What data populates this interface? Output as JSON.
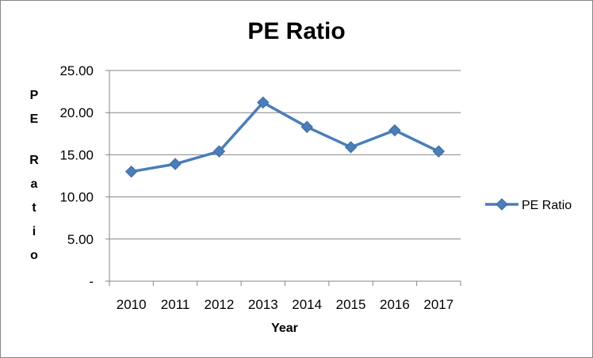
{
  "chart_data": {
    "type": "line",
    "title": "PE Ratio",
    "xlabel": "Year",
    "ylabel": "PE Ratio",
    "categories": [
      "2010",
      "2011",
      "2012",
      "2013",
      "2014",
      "2015",
      "2016",
      "2017"
    ],
    "series": [
      {
        "name": "PE Ratio",
        "values": [
          13.0,
          13.9,
          15.4,
          21.2,
          18.3,
          15.9,
          17.9,
          15.4
        ],
        "color": "#4a7ebb",
        "marker": "diamond"
      }
    ],
    "y_ticks": [
      "-",
      "5.00",
      "10.00",
      "15.00",
      "20.00",
      "25.00"
    ],
    "ylim": [
      0,
      25
    ],
    "grid": "horizontal",
    "legend": "right"
  }
}
